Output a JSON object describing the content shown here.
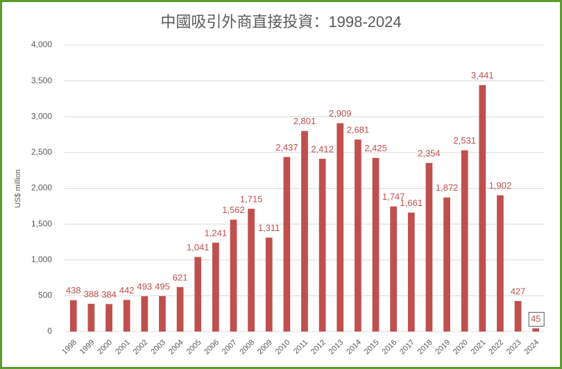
{
  "chart_data": {
    "type": "bar",
    "title": "中國吸引外商直接投資：1998-2024",
    "y_label": "US$ million",
    "categories": [
      "1998",
      "1999",
      "2000",
      "2001",
      "2002",
      "2003",
      "2004",
      "2005",
      "2006",
      "2007",
      "2008",
      "2009",
      "2010",
      "2011",
      "2012",
      "2013",
      "2014",
      "2015",
      "2016",
      "2017",
      "2018",
      "2019",
      "2020",
      "2021",
      "2022",
      "2023",
      "2024"
    ],
    "values": [
      438,
      388,
      384,
      442,
      493,
      495,
      621,
      1041,
      1241,
      1562,
      1715,
      1311,
      2437,
      2801,
      2412,
      2909,
      2681,
      2425,
      1747,
      1661,
      2354,
      1872,
      2531,
      3441,
      1902,
      427,
      45
    ],
    "value_labels": [
      "438",
      "388",
      "384",
      "442",
      "493",
      "495",
      "621",
      "1,041",
      "1,241",
      "1,562",
      "1,715",
      "1,311",
      "2,437",
      "2,801",
      "2,412",
      "2,909",
      "2,681",
      "2,425",
      "1,747",
      "1,661",
      "2,354",
      "1,872",
      "2,531",
      "3,441",
      "1,902",
      "427",
      "45"
    ],
    "color": "#c0504d",
    "ylim": [
      0,
      4000
    ],
    "yticks": [
      0,
      500,
      {
        "value": 1000,
        "label": "1,000"
      },
      {
        "value": 1500,
        "label": "1,500"
      },
      {
        "value": 2000,
        "label": "2,000"
      },
      {
        "value": 2500,
        "label": "2,500"
      },
      {
        "value": 3000,
        "label": "3,000"
      },
      {
        "value": 3500,
        "label": "3,500"
      },
      {
        "value": 4000,
        "label": "4,000"
      }
    ],
    "grid": true
  }
}
